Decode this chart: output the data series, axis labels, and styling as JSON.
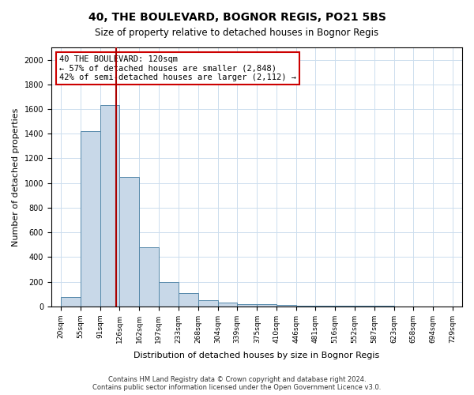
{
  "title1": "40, THE BOULEVARD, BOGNOR REGIS, PO21 5BS",
  "title2": "Size of property relative to detached houses in Bognor Regis",
  "xlabel": "Distribution of detached houses by size in Bognor Regis",
  "ylabel": "Number of detached properties",
  "footnote": "Contains HM Land Registry data © Crown copyright and database right 2024.\nContains public sector information licensed under the Open Government Licence v3.0.",
  "bin_labels": [
    "20sqm",
    "55sqm",
    "91sqm",
    "126sqm",
    "162sqm",
    "197sqm",
    "233sqm",
    "268sqm",
    "304sqm",
    "339sqm",
    "375sqm",
    "410sqm",
    "446sqm",
    "481sqm",
    "516sqm",
    "552sqm",
    "587sqm",
    "623sqm",
    "658sqm",
    "694sqm",
    "729sqm"
  ],
  "bin_edges": [
    20,
    55,
    91,
    126,
    162,
    197,
    233,
    268,
    304,
    339,
    375,
    410,
    446,
    481,
    516,
    552,
    587,
    623,
    658,
    694,
    729
  ],
  "bar_values": [
    75,
    1420,
    1630,
    1050,
    480,
    200,
    110,
    50,
    30,
    20,
    15,
    10,
    5,
    5,
    3,
    3,
    2,
    1,
    1,
    1
  ],
  "bar_color": "#c8d8e8",
  "bar_edge_color": "#5588aa",
  "property_size": 120,
  "property_label": "40 THE BOULEVARD: 120sqm",
  "annotation_line1": "← 57% of detached houses are smaller (2,848)",
  "annotation_line2": "42% of semi-detached houses are larger (2,112) →",
  "vline_color": "#aa0000",
  "box_edge_color": "#cc0000",
  "ylim": [
    0,
    2100
  ],
  "yticks": [
    0,
    200,
    400,
    600,
    800,
    1000,
    1200,
    1400,
    1600,
    1800,
    2000
  ],
  "background_color": "#ffffff",
  "grid_color": "#ccddee"
}
